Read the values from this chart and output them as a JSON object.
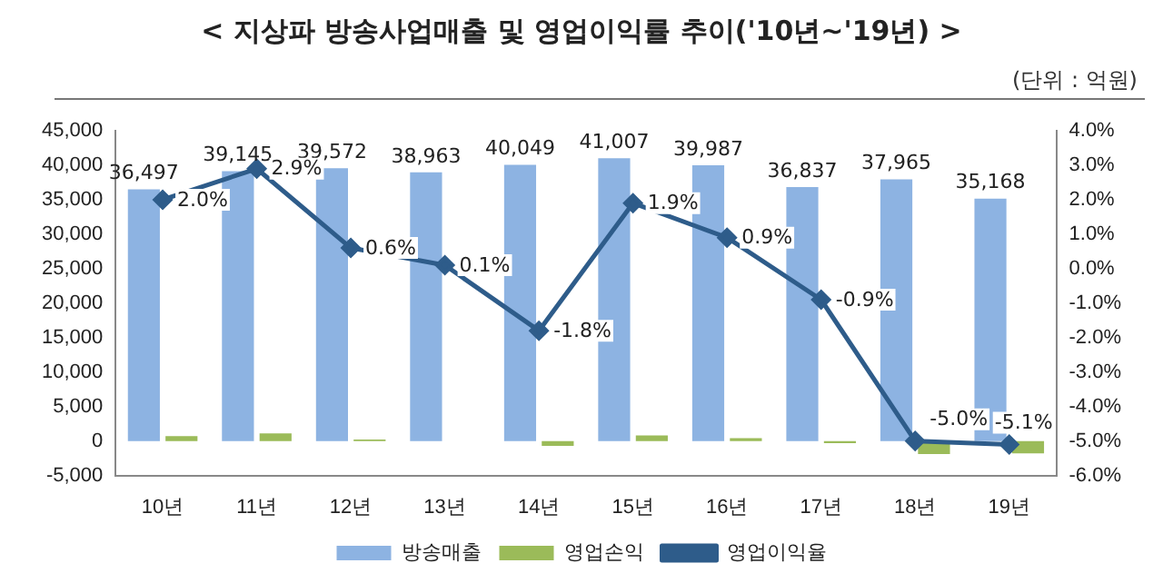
{
  "chart_data": {
    "type": "bar",
    "title": "< 지상파 방송사업매출 및 영업이익률 추이('10년~'19년) >",
    "subtitle": "(단위 : 억원)",
    "categories": [
      "10년",
      "11년",
      "12년",
      "13년",
      "14년",
      "15년",
      "16년",
      "17년",
      "18년",
      "19년"
    ],
    "series": [
      {
        "name": "방송매출",
        "color": "#8db3e2",
        "values": [
          36497,
          39145,
          39572,
          38963,
          40049,
          41007,
          39987,
          36837,
          37965,
          35168
        ],
        "value_labels": [
          "36,497",
          "39,145",
          "39,572",
          "38,963",
          "40,049",
          "41,007",
          "39,987",
          "36,837",
          "37,965",
          "35,168"
        ]
      },
      {
        "name": "영업손익",
        "color": "#9bbb59",
        "values": [
          700,
          1100,
          200,
          0,
          -700,
          800,
          400,
          -300,
          -1900,
          -1800
        ]
      },
      {
        "name": "영업이익율",
        "type": "line",
        "axis": "y2",
        "color": "#2e5c8a",
        "marker": "diamond",
        "values": [
          2.0,
          2.9,
          0.6,
          0.1,
          -1.8,
          1.9,
          0.9,
          -0.9,
          -5.0,
          -5.1
        ],
        "value_labels": [
          "2.0%",
          "2.9%",
          "0.6%",
          "0.1%",
          "-1.8%",
          "1.9%",
          "0.9%",
          "-0.9%",
          "-5.0%",
          "-5.1%"
        ]
      }
    ],
    "ylim": [
      -5000,
      45000
    ],
    "yticks": [
      {
        "value": -5000,
        "label": "-5,000"
      },
      0,
      {
        "value": 5000,
        "label": "5,000"
      },
      {
        "value": 10000,
        "label": "10,000"
      },
      {
        "value": 15000,
        "label": "15,000"
      },
      {
        "value": 20000,
        "label": "20,000"
      },
      {
        "value": 25000,
        "label": "25,000"
      },
      {
        "value": 30000,
        "label": "30,000"
      },
      {
        "value": 35000,
        "label": "35,000"
      },
      {
        "value": 40000,
        "label": "40,000"
      },
      {
        "value": 45000,
        "label": "45,000"
      }
    ],
    "y2lim": [
      -6,
      4
    ],
    "y2ticks": [
      {
        "value": -6,
        "label": "-6.0%"
      },
      {
        "value": -5,
        "label": "-5.0%"
      },
      {
        "value": -4,
        "label": "-4.0%"
      },
      {
        "value": -3,
        "label": "-3.0%"
      },
      {
        "value": -2,
        "label": "-2.0%"
      },
      {
        "value": -1,
        "label": "-1.0%"
      },
      {
        "value": 0,
        "label": "0.0%"
      },
      {
        "value": 1,
        "label": "1.0%"
      },
      {
        "value": 2,
        "label": "2.0%"
      },
      {
        "value": 3,
        "label": "3.0%"
      },
      {
        "value": 4,
        "label": "4.0%"
      }
    ],
    "grid": false,
    "legend": "bottom"
  }
}
